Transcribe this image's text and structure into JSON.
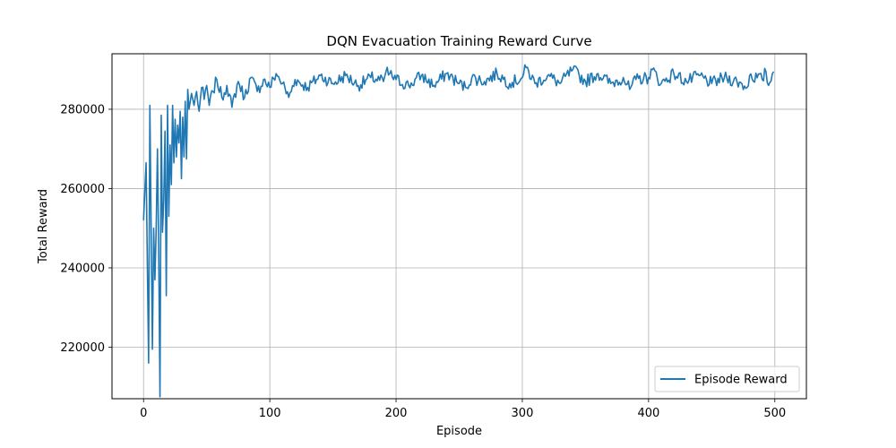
{
  "chart_data": {
    "type": "line",
    "title": "DQN Evacuation Training Reward Curve",
    "xlabel": "Episode",
    "ylabel": "Total Reward",
    "xlim": [
      -25,
      525
    ],
    "ylim": [
      207000,
      294000
    ],
    "xticks": [
      0,
      100,
      200,
      300,
      400,
      500
    ],
    "yticks": [
      220000,
      240000,
      260000,
      280000
    ],
    "grid": true,
    "legend_position": "lower-right",
    "colors": {
      "series": "#1f77b4",
      "grid": "#b0b0b0",
      "axes": "#000000"
    },
    "series": [
      {
        "name": "Episode Reward",
        "keypoints": [
          [
            0,
            252000
          ],
          [
            2,
            266500
          ],
          [
            4,
            216000
          ],
          [
            5,
            281000
          ],
          [
            7,
            219500
          ],
          [
            8,
            250000
          ],
          [
            9,
            237000
          ],
          [
            10,
            250000
          ],
          [
            11,
            270000
          ],
          [
            12,
            244000
          ],
          [
            13,
            207500
          ],
          [
            14,
            278500
          ],
          [
            15,
            249000
          ],
          [
            16,
            257000
          ],
          [
            17,
            274500
          ],
          [
            18,
            233000
          ],
          [
            19,
            281000
          ],
          [
            20,
            253000
          ],
          [
            21,
            271000
          ],
          [
            22,
            261000
          ],
          [
            23,
            281000
          ],
          [
            24,
            266500
          ],
          [
            25,
            277500
          ],
          [
            26,
            268000
          ],
          [
            27,
            276000
          ],
          [
            28,
            271500
          ],
          [
            29,
            279500
          ],
          [
            30,
            262500
          ],
          [
            31,
            278000
          ],
          [
            32,
            268000
          ],
          [
            33,
            282000
          ],
          [
            34,
            267500
          ],
          [
            35,
            285000
          ],
          [
            36,
            280000
          ],
          [
            38,
            284000
          ],
          [
            40,
            281000
          ],
          [
            42,
            284500
          ],
          [
            44,
            279500
          ],
          [
            46,
            285500
          ],
          [
            48,
            282500
          ],
          [
            50,
            286000
          ],
          [
            52,
            281000
          ],
          [
            55,
            284500
          ],
          [
            58,
            287500
          ],
          [
            62,
            283000
          ],
          [
            66,
            286000
          ],
          [
            70,
            280500
          ],
          [
            75,
            287000
          ],
          [
            80,
            283000
          ],
          [
            85,
            288000
          ],
          [
            90,
            284500
          ],
          [
            95,
            287500
          ],
          [
            100,
            285500
          ],
          [
            105,
            289000
          ],
          [
            110,
            286500
          ],
          [
            115,
            283000
          ],
          [
            120,
            287500
          ],
          [
            130,
            285500
          ],
          [
            140,
            288500
          ],
          [
            150,
            286500
          ],
          [
            160,
            288500
          ],
          [
            170,
            286000
          ],
          [
            180,
            288000
          ],
          [
            190,
            287000
          ],
          [
            192,
            289500
          ],
          [
            200,
            287500
          ],
          [
            210,
            286000
          ],
          [
            220,
            288500
          ],
          [
            230,
            286000
          ],
          [
            240,
            289000
          ],
          [
            250,
            286500
          ],
          [
            255,
            285500
          ],
          [
            260,
            288000
          ],
          [
            270,
            287000
          ],
          [
            280,
            289000
          ],
          [
            290,
            286500
          ],
          [
            300,
            288000
          ],
          [
            303,
            290500
          ],
          [
            310,
            286500
          ],
          [
            320,
            288500
          ],
          [
            330,
            286500
          ],
          [
            340,
            290000
          ],
          [
            350,
            287000
          ],
          [
            360,
            289000
          ],
          [
            370,
            286500
          ],
          [
            380,
            288000
          ],
          [
            385,
            285000
          ],
          [
            390,
            287500
          ],
          [
            400,
            288000
          ],
          [
            403,
            290000
          ],
          [
            410,
            286500
          ],
          [
            420,
            289000
          ],
          [
            430,
            287000
          ],
          [
            440,
            288500
          ],
          [
            450,
            286500
          ],
          [
            460,
            288000
          ],
          [
            470,
            287000
          ],
          [
            478,
            285500
          ],
          [
            480,
            288500
          ],
          [
            490,
            287500
          ],
          [
            493,
            289500
          ],
          [
            495,
            286000
          ],
          [
            499,
            289500
          ]
        ]
      }
    ]
  }
}
